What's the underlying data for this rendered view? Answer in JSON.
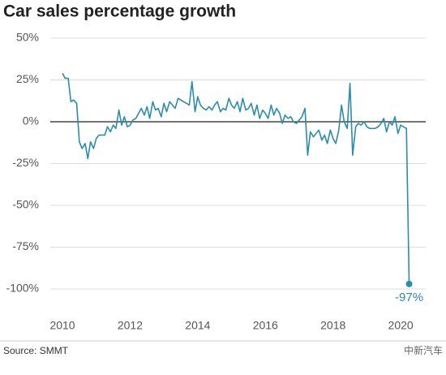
{
  "chart_data": {
    "type": "line",
    "title": "Car sales percentage growth",
    "source": "Source: SMMT",
    "watermark": "中新汽车",
    "x": [
      2010,
      2010.08,
      2010.17,
      2010.25,
      2010.33,
      2010.42,
      2010.5,
      2010.58,
      2010.67,
      2010.75,
      2010.83,
      2010.92,
      2011,
      2011.08,
      2011.17,
      2011.25,
      2011.33,
      2011.42,
      2011.5,
      2011.58,
      2011.67,
      2011.75,
      2011.83,
      2011.92,
      2012,
      2012.08,
      2012.17,
      2012.25,
      2012.33,
      2012.42,
      2012.5,
      2012.58,
      2012.67,
      2012.75,
      2012.83,
      2012.92,
      2013,
      2013.08,
      2013.17,
      2013.25,
      2013.33,
      2013.42,
      2013.5,
      2013.58,
      2013.67,
      2013.75,
      2013.83,
      2013.92,
      2014,
      2014.08,
      2014.17,
      2014.25,
      2014.33,
      2014.42,
      2014.5,
      2014.58,
      2014.67,
      2014.75,
      2014.83,
      2014.92,
      2015,
      2015.08,
      2015.17,
      2015.25,
      2015.33,
      2015.42,
      2015.5,
      2015.58,
      2015.67,
      2015.75,
      2015.83,
      2015.92,
      2016,
      2016.08,
      2016.17,
      2016.25,
      2016.33,
      2016.42,
      2016.5,
      2016.58,
      2016.67,
      2016.75,
      2016.83,
      2016.92,
      2017,
      2017.08,
      2017.17,
      2017.25,
      2017.33,
      2017.42,
      2017.5,
      2017.58,
      2017.67,
      2017.75,
      2017.83,
      2017.92,
      2018,
      2018.08,
      2018.17,
      2018.25,
      2018.33,
      2018.42,
      2018.5,
      2018.58,
      2018.67,
      2018.75,
      2018.83,
      2018.92,
      2019,
      2019.08,
      2019.17,
      2019.25,
      2019.33,
      2019.42,
      2019.5,
      2019.58,
      2019.67,
      2019.75,
      2019.83,
      2019.92,
      2020,
      2020.08,
      2020.17,
      2020.25
    ],
    "series": [
      {
        "name": "Car sales growth",
        "color": "#2b8cab",
        "values": [
          29,
          26,
          26,
          12,
          13,
          11,
          -12,
          -16,
          -13,
          -22,
          -12,
          -16,
          -10,
          -8,
          -8,
          -8,
          -3,
          -6,
          -2,
          -4,
          7,
          -2,
          3,
          -3,
          -2,
          1,
          2,
          5,
          8,
          4,
          9,
          2,
          12,
          7,
          8,
          3,
          11,
          6,
          12,
          10,
          8,
          14,
          13,
          12,
          11,
          10,
          24,
          6,
          15,
          10,
          8,
          7,
          9,
          7,
          10,
          12,
          6,
          8,
          7,
          14,
          10,
          8,
          12,
          6,
          14,
          7,
          8,
          11,
          4,
          10,
          2,
          7,
          5,
          2,
          10,
          4,
          8,
          5,
          -1,
          4,
          2,
          3,
          0,
          -1,
          1,
          3,
          8,
          -20,
          -6,
          -9,
          -7,
          -5,
          -11,
          -8,
          -13,
          -5,
          -10,
          -13,
          -5,
          10,
          0,
          -4,
          23,
          -20,
          -3,
          -1,
          -2,
          0,
          -3,
          -4,
          -4,
          -4,
          -3,
          -1,
          2,
          -6,
          0,
          -2,
          3,
          -7,
          -2,
          -3,
          -4,
          -97
        ]
      }
    ],
    "annotations": [
      {
        "text": "-97%"
      }
    ],
    "xlim": [
      2009.64,
      2020.74
    ],
    "xticks": [
      2010,
      2012,
      2014,
      2016,
      2018,
      2020
    ],
    "ylim": [
      -100,
      50
    ],
    "yticks": [
      {
        "value": -100,
        "label": "-100%"
      },
      {
        "value": -75,
        "label": "-75%"
      },
      {
        "value": -50,
        "label": "-50%"
      },
      {
        "value": -25,
        "label": "-25%"
      },
      {
        "value": 0,
        "label": "0%"
      },
      {
        "value": 25,
        "label": "25%"
      },
      {
        "value": 50,
        "label": "50%"
      }
    ],
    "grid": true
  }
}
